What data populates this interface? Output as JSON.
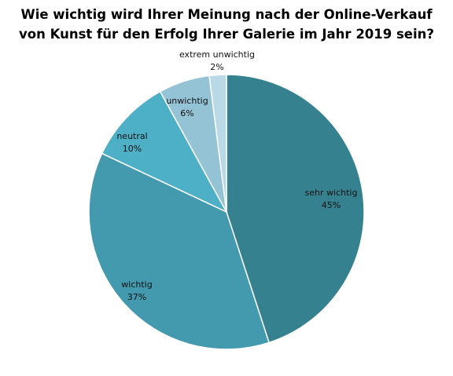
{
  "chart_data": {
    "type": "pie",
    "title_lines": [
      "Wie wichtig wird Ihrer Meinung nach der Online-Verkauf",
      "von Kunst für den Erfolg Ihrer Galerie im Jahr 2019 sein?"
    ],
    "slices": [
      {
        "label": "sehr wichtig",
        "value": 45,
        "value_label": "45%",
        "color": "#35818f"
      },
      {
        "label": "wichtig",
        "value": 37,
        "value_label": "37%",
        "color": "#4399ad"
      },
      {
        "label": "neutral",
        "value": 10,
        "value_label": "10%",
        "color": "#4eb0c7"
      },
      {
        "label": "unwichtig",
        "value": 6,
        "value_label": "6%",
        "color": "#93c3d5"
      },
      {
        "label": "extrem  unwichtig",
        "value": 2,
        "value_label": "2%",
        "color": "#b9d9e6"
      }
    ],
    "start_angle": "12 o'clock",
    "direction": "clockwise",
    "legend": "none"
  }
}
